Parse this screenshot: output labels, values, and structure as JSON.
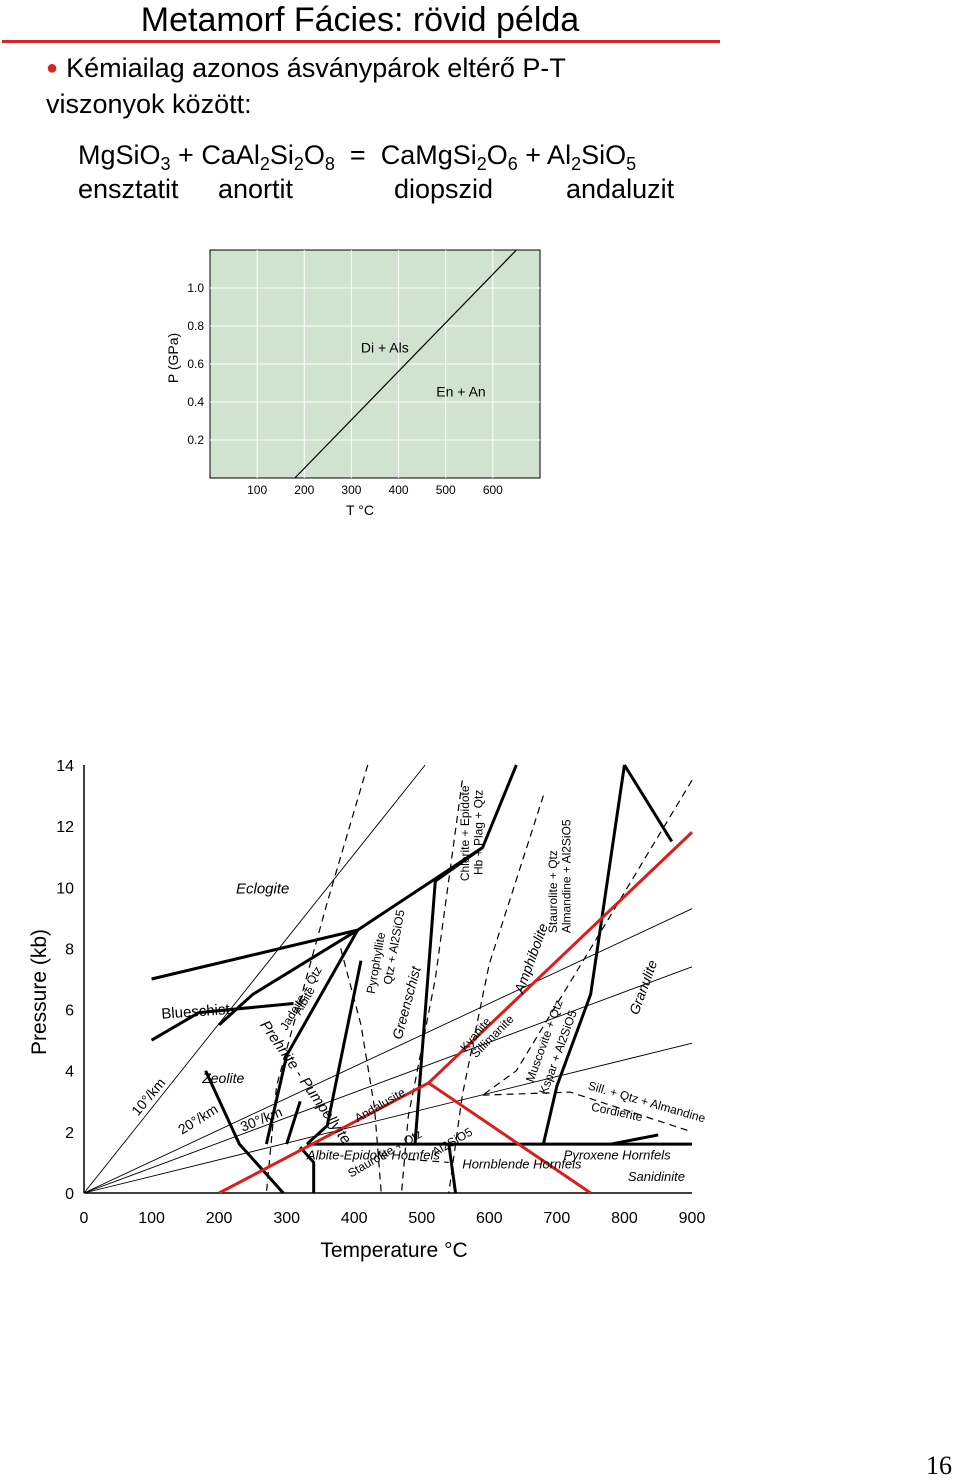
{
  "slide": {
    "title": "Metamorf Fácies: rövid példa",
    "bullet": "Kémiailag azonos ásványpárok eltérő P-T viszonyok között:",
    "page_number": "16"
  },
  "equation": {
    "t1": "MgSiO",
    "s1": "3",
    "t2": " + CaAl",
    "s2": "2",
    "t3": "Si",
    "s3": "2",
    "t4": "O",
    "s4": "8",
    "t5": "  =  CaMgSi",
    "s5": "2",
    "t6": "O",
    "s6": "6",
    "t7": " + Al",
    "s7": "2",
    "t8": "SiO",
    "s8": "5",
    "names": [
      "ensztatit",
      "anortit",
      "diopszid",
      "andaluzit"
    ]
  },
  "chart_data": [
    {
      "type": "line",
      "xlabel": "T °C",
      "ylabel": "P (GPa)",
      "xticks": [
        "100",
        "200",
        "300",
        "400",
        "500",
        "600"
      ],
      "yticks": [
        "1.0",
        "0.8",
        "0.6",
        "0.4",
        "0.2"
      ],
      "xlim": [
        0,
        700
      ],
      "ylim": [
        0,
        1.2
      ],
      "background": "#cfe3cf",
      "series": [
        {
          "x": [
            180,
            650
          ],
          "y": [
            0.0,
            1.2
          ]
        }
      ],
      "annotations": [
        {
          "text": "Di + Als",
          "x": 320,
          "y": 0.66
        },
        {
          "text": "En + An",
          "x": 480,
          "y": 0.43
        }
      ]
    },
    {
      "type": "line",
      "xlabel": "Temperature °C",
      "ylabel": "Pressure (kb)",
      "xticks": [
        "0",
        "100",
        "200",
        "300",
        "400",
        "500",
        "600",
        "700",
        "800",
        "900"
      ],
      "yticks": [
        "0",
        "2",
        "4",
        "6",
        "8",
        "10",
        "12",
        "14"
      ],
      "xlim": [
        0,
        900
      ],
      "ylim": [
        0,
        14
      ],
      "facies": [
        "Eclogite",
        "Blueschist",
        "Zeolite",
        "Prehnite - Pumpellyite",
        "Greenschist",
        "Amphibolite",
        "Granulite",
        "Albite-Epidote Hornfels",
        "Hornblende Hornfels",
        "Pyroxene Hornfels",
        "Sanidinite"
      ],
      "reactions": [
        "Jadeite + Qtz",
        "Albite",
        "Pyrophyllite",
        "Qtz + Al2SiO5",
        "Chlorite + Epidote",
        "Hb + Plag + Qtz",
        "Staurolite + Qtz",
        "Almandine + Al2SiO5",
        "Kyanite",
        "Sillimanite",
        "Andalusite",
        "Muscovite + Qtz",
        "Kspar + Al2SiO5",
        "Sill. + Qtz + Almandine",
        "Cordierite",
        "Staurolite + Qtz",
        "Al2SiO5"
      ],
      "gradients": [
        "10°/km",
        "20°/km",
        "30°/km"
      ],
      "highlight_color": "#dd1c1c"
    }
  ]
}
